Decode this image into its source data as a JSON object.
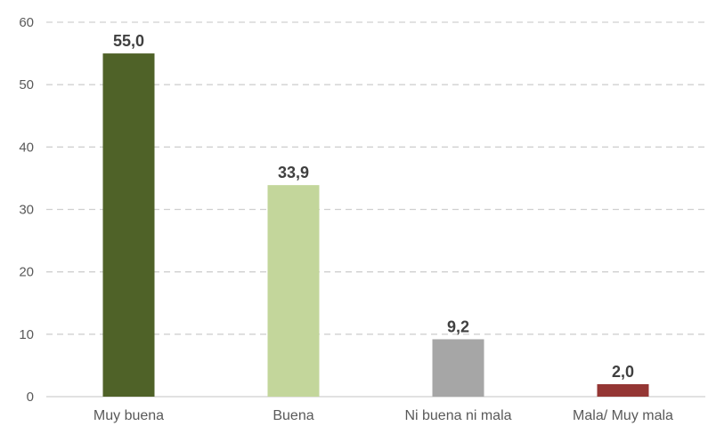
{
  "chart_data": {
    "type": "bar",
    "title": "",
    "xlabel": "",
    "ylabel": "",
    "categories": [
      "Muy buena",
      "Buena",
      "Ni buena ni mala",
      "Mala/ Muy mala"
    ],
    "values": [
      55.0,
      33.9,
      9.2,
      2.0
    ],
    "value_labels": [
      "55,0",
      "33,9",
      "9,2",
      "2,0"
    ],
    "colors": [
      "#4f6228",
      "#c3d69b",
      "#a6a6a6",
      "#943634"
    ],
    "ylim": [
      0,
      60
    ],
    "yticks": [
      0,
      10,
      20,
      30,
      40,
      50,
      60
    ],
    "ytick_labels": [
      "0",
      "10",
      "20",
      "30",
      "40",
      "50",
      "60"
    ],
    "grid": true,
    "legend": "none"
  }
}
